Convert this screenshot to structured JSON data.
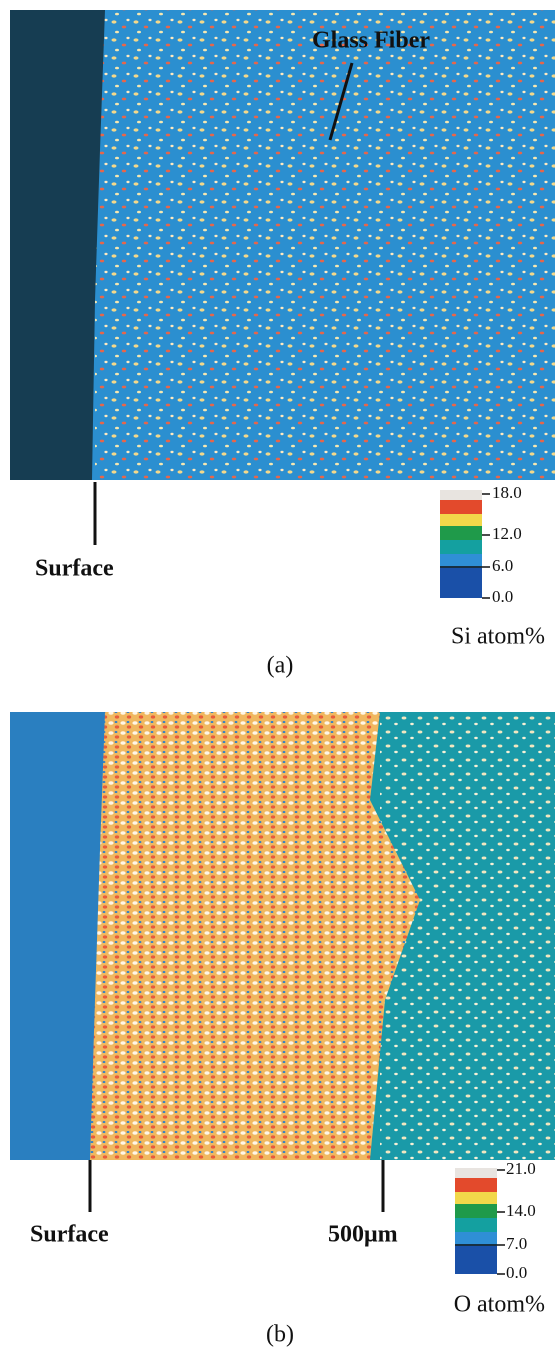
{
  "panel_a": {
    "annotation": "Glass Fiber",
    "surface_label": "Surface",
    "colorbar_ticks": [
      "18.0",
      "12.0",
      "6.0",
      "0.0"
    ],
    "colorbar_unit": "Si atom%",
    "caption": "(a)"
  },
  "panel_b": {
    "surface_label": "Surface",
    "scale_label": "500μm",
    "colorbar_ticks": [
      "21.0",
      "14.0",
      "7.0",
      "0.0"
    ],
    "colorbar_unit": "O atom%",
    "caption": "(b)"
  }
}
